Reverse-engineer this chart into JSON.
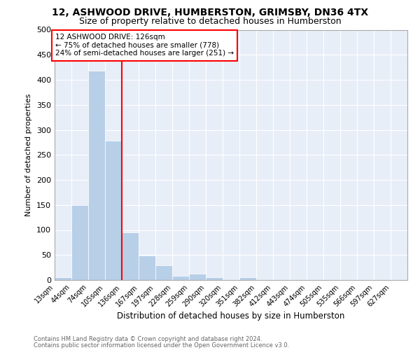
{
  "title": "12, ASHWOOD DRIVE, HUMBERSTON, GRIMSBY, DN36 4TX",
  "subtitle": "Size of property relative to detached houses in Humberston",
  "xlabel": "Distribution of detached houses by size in Humberston",
  "ylabel": "Number of detached properties",
  "bin_labels": [
    "13sqm",
    "44sqm",
    "74sqm",
    "105sqm",
    "136sqm",
    "167sqm",
    "197sqm",
    "228sqm",
    "259sqm",
    "290sqm",
    "320sqm",
    "351sqm",
    "382sqm",
    "412sqm",
    "443sqm",
    "474sqm",
    "505sqm",
    "535sqm",
    "566sqm",
    "597sqm",
    "627sqm"
  ],
  "bar_heights": [
    5,
    150,
    418,
    278,
    95,
    49,
    29,
    8,
    12,
    5,
    0,
    5,
    0,
    0,
    0,
    0,
    0,
    0,
    0,
    0,
    0
  ],
  "bar_color": "#b8cfe8",
  "vline_x_index": 4,
  "vline_color": "red",
  "annotation_title": "12 ASHWOOD DRIVE: 126sqm",
  "annotation_line1": "← 75% of detached houses are smaller (778)",
  "annotation_line2": "24% of semi-detached houses are larger (251) →",
  "ylim": [
    0,
    500
  ],
  "yticks": [
    0,
    50,
    100,
    150,
    200,
    250,
    300,
    350,
    400,
    450,
    500
  ],
  "footnote1": "Contains HM Land Registry data © Crown copyright and database right 2024.",
  "footnote2": "Contains public sector information licensed under the Open Government Licence v3.0.",
  "bg_color": "#e8eef8",
  "grid_color": "white",
  "bin_edges": [
    13,
    44,
    74,
    105,
    136,
    167,
    197,
    228,
    259,
    290,
    320,
    351,
    382,
    412,
    443,
    474,
    505,
    535,
    566,
    597,
    627,
    658
  ]
}
